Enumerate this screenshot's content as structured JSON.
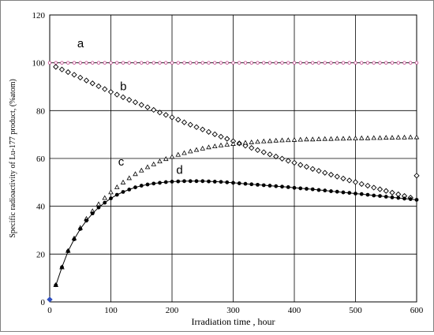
{
  "chart_data": {
    "type": "scatter",
    "xlabel": "Irradiation time , hour",
    "ylabel": "Specific radioactivity of Lu-177 product, (%atom)",
    "xlim": [
      0,
      600
    ],
    "ylim": [
      0,
      120
    ],
    "xticks": [
      0,
      100,
      200,
      300,
      400,
      500,
      600
    ],
    "yticks": [
      0,
      20,
      40,
      60,
      80,
      100,
      120
    ],
    "grid": true,
    "colors": {
      "a": "#c0408a",
      "b": "#000000",
      "c": "#000000",
      "d": "#000000",
      "origin": "#3050c0"
    },
    "series": [
      {
        "name": "a",
        "marker": "circle-open",
        "x": [
          0,
          10,
          20,
          30,
          40,
          50,
          60,
          70,
          80,
          90,
          100,
          110,
          120,
          130,
          140,
          150,
          160,
          170,
          180,
          190,
          200,
          210,
          220,
          230,
          240,
          250,
          260,
          270,
          280,
          290,
          300,
          310,
          320,
          330,
          340,
          350,
          360,
          370,
          380,
          390,
          400,
          410,
          420,
          430,
          440,
          450,
          460,
          470,
          480,
          490,
          500,
          510,
          520,
          530,
          540,
          550,
          560,
          570,
          580,
          590,
          600
        ],
        "y": [
          100,
          100,
          100,
          100,
          100,
          100,
          100,
          100,
          100,
          100,
          100,
          100,
          100,
          100,
          100,
          100,
          100,
          100,
          100,
          100,
          100,
          100,
          100,
          100,
          100,
          100,
          100,
          100,
          100,
          100,
          100,
          100,
          100,
          100,
          100,
          100,
          100,
          100,
          100,
          100,
          100,
          100,
          100,
          100,
          100,
          100,
          100,
          100,
          100,
          100,
          100,
          100,
          100,
          100,
          100,
          100,
          100,
          100,
          100,
          100,
          100
        ]
      },
      {
        "name": "b",
        "marker": "diamond-open",
        "x": [
          10,
          20,
          30,
          40,
          50,
          60,
          70,
          80,
          90,
          100,
          110,
          120,
          130,
          140,
          150,
          160,
          170,
          180,
          190,
          200,
          210,
          220,
          230,
          240,
          250,
          260,
          270,
          280,
          290,
          300,
          310,
          320,
          330,
          340,
          350,
          360,
          370,
          380,
          390,
          400,
          410,
          420,
          430,
          440,
          450,
          460,
          470,
          480,
          490,
          500,
          510,
          520,
          530,
          540,
          550,
          560,
          570,
          580,
          590,
          600
        ],
        "y": [
          98.3,
          97.2,
          96.1,
          95.0,
          93.8,
          92.6,
          91.4,
          90.2,
          89.0,
          87.8,
          86.7,
          85.6,
          84.5,
          83.5,
          82.4,
          81.4,
          80.3,
          79.2,
          78.2,
          77.2,
          76.2,
          75.1,
          74.1,
          73.1,
          72.1,
          71.1,
          70.1,
          69.1,
          68.2,
          67.2,
          66.3,
          65.3,
          64.4,
          63.5,
          62.6,
          61.7,
          60.8,
          59.9,
          59.0,
          58.2,
          57.3,
          56.5,
          55.6,
          54.8,
          54.0,
          53.2,
          52.4,
          51.6,
          50.8,
          50.1,
          49.3,
          48.6,
          47.8,
          47.1,
          46.4,
          45.7,
          45.0,
          44.3,
          43.6,
          52.8
        ]
      },
      {
        "name": "c",
        "marker": "triangle-open",
        "x": [
          10,
          20,
          30,
          40,
          50,
          60,
          70,
          80,
          90,
          100,
          110,
          120,
          130,
          140,
          150,
          160,
          170,
          180,
          190,
          200,
          210,
          220,
          230,
          240,
          250,
          260,
          270,
          280,
          290,
          300,
          310,
          320,
          330,
          340,
          350,
          360,
          370,
          380,
          390,
          400,
          410,
          420,
          430,
          440,
          450,
          460,
          470,
          480,
          490,
          500,
          510,
          520,
          530,
          540,
          550,
          560,
          570,
          580,
          590,
          600
        ],
        "y": [
          7.1,
          14.5,
          21.4,
          26.6,
          31.0,
          34.8,
          38.0,
          40.9,
          43.5,
          45.9,
          48.0,
          50.0,
          51.8,
          53.5,
          55.0,
          56.4,
          57.6,
          58.8,
          59.8,
          60.7,
          61.6,
          62.3,
          63.0,
          63.6,
          64.2,
          64.7,
          65.1,
          65.5,
          65.8,
          66.1,
          66.4,
          66.6,
          66.8,
          67.0,
          67.2,
          67.3,
          67.5,
          67.6,
          67.7,
          67.8,
          67.9,
          68.0,
          68.0,
          68.1,
          68.2,
          68.2,
          68.3,
          68.3,
          68.4,
          68.4,
          68.5,
          68.5,
          68.6,
          68.6,
          68.7,
          68.7,
          68.8,
          68.8,
          68.9,
          68.9
        ]
      },
      {
        "name": "d",
        "marker": "circle-filled",
        "x": [
          10,
          20,
          30,
          40,
          50,
          60,
          70,
          80,
          90,
          100,
          110,
          120,
          130,
          140,
          150,
          160,
          170,
          180,
          190,
          200,
          210,
          220,
          230,
          240,
          250,
          260,
          270,
          280,
          290,
          300,
          310,
          320,
          330,
          340,
          350,
          360,
          370,
          380,
          390,
          400,
          410,
          420,
          430,
          440,
          450,
          460,
          470,
          480,
          490,
          500,
          510,
          520,
          530,
          540,
          550,
          560,
          570,
          580,
          590,
          600
        ],
        "y": [
          7.0,
          14.5,
          21.2,
          26.2,
          30.5,
          34.0,
          37.0,
          39.5,
          41.5,
          43.3,
          44.8,
          46.0,
          47.0,
          47.9,
          48.6,
          49.1,
          49.5,
          49.8,
          50.1,
          50.3,
          50.4,
          50.5,
          50.5,
          50.5,
          50.5,
          50.4,
          50.3,
          50.2,
          50.0,
          49.8,
          49.6,
          49.4,
          49.2,
          49.0,
          48.8,
          48.6,
          48.4,
          48.2,
          48.0,
          47.7,
          47.5,
          47.3,
          47.1,
          46.8,
          46.6,
          46.3,
          46.1,
          45.8,
          45.6,
          45.3,
          45.1,
          44.8,
          44.5,
          44.3,
          44.0,
          43.7,
          43.5,
          43.2,
          43.0,
          42.7
        ]
      }
    ],
    "curve_labels": [
      {
        "text": "a",
        "x": 45,
        "y": 106.5
      },
      {
        "text": "b",
        "x": 115,
        "y": 88.5
      },
      {
        "text": "c",
        "x": 112,
        "y": 57
      },
      {
        "text": "d",
        "x": 207,
        "y": 53.5
      }
    ],
    "origin_point": {
      "x": 0,
      "y": 1
    }
  }
}
